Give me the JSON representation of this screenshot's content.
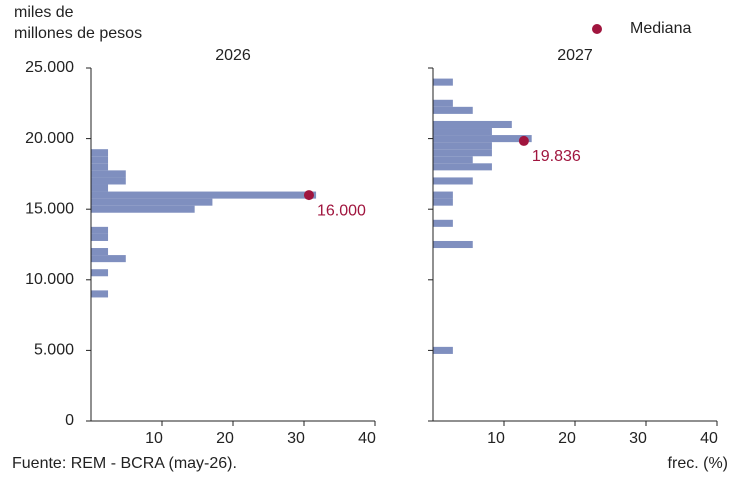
{
  "chart_data": [
    {
      "type": "barh",
      "title": "2026",
      "color": "#7f8fbf",
      "bin_edges": [
        [
          8750,
          9250
        ],
        [
          10250,
          10750
        ],
        [
          11250,
          11750
        ],
        [
          11750,
          12250
        ],
        [
          12750,
          13250
        ],
        [
          13250,
          13750
        ],
        [
          14750,
          15250
        ],
        [
          15250,
          15750
        ],
        [
          15750,
          16250
        ],
        [
          16250,
          16750
        ],
        [
          16750,
          17250
        ],
        [
          17250,
          17750
        ],
        [
          17750,
          18250
        ],
        [
          18250,
          18750
        ],
        [
          18750,
          19250
        ]
      ],
      "values": [
        2.4,
        2.4,
        4.9,
        2.4,
        2.4,
        2.4,
        14.6,
        17.1,
        31.7,
        2.4,
        4.9,
        4.9,
        2.4,
        2.4,
        2.4
      ],
      "median": {
        "y": 16000,
        "label": "16.000",
        "x": 30.7,
        "color": "#a0153e"
      },
      "xlim": [
        0,
        40
      ],
      "xticks": [
        10,
        20,
        30,
        40
      ],
      "ylim": [
        0,
        25000
      ],
      "yticks": [
        {
          "value": 0,
          "label": "0"
        },
        {
          "value": 5000,
          "label": "5.000"
        },
        {
          "value": 10000,
          "label": "10.000"
        },
        {
          "value": 15000,
          "label": "15.000"
        },
        {
          "value": 20000,
          "label": "20.000"
        },
        {
          "value": 25000,
          "label": "25.000"
        }
      ]
    },
    {
      "type": "barh",
      "title": "2027",
      "color": "#7f8fbf",
      "bin_edges": [
        [
          4750,
          5250
        ],
        [
          12250,
          12750
        ],
        [
          13750,
          14250
        ],
        [
          15250,
          15750
        ],
        [
          15750,
          16250
        ],
        [
          16750,
          17250
        ],
        [
          17750,
          18250
        ],
        [
          18250,
          18750
        ],
        [
          18750,
          19250
        ],
        [
          19250,
          19750
        ],
        [
          19750,
          20250
        ],
        [
          20250,
          20750
        ],
        [
          20750,
          21250
        ],
        [
          21750,
          22250
        ],
        [
          22250,
          22750
        ],
        [
          23750,
          24250
        ]
      ],
      "values": [
        2.8,
        5.6,
        2.8,
        2.8,
        2.8,
        5.6,
        8.3,
        5.6,
        8.3,
        8.3,
        13.9,
        8.3,
        11.1,
        5.6,
        2.8,
        2.8
      ],
      "median": {
        "y": 19836,
        "label": "19.836",
        "x": 12.8,
        "color": "#a0153e"
      },
      "xlim": [
        0,
        40
      ],
      "xticks": [
        10,
        20,
        30,
        40
      ],
      "ylim": [
        0,
        25000
      ],
      "yticks": [
        0,
        5000,
        10000,
        15000,
        20000,
        25000
      ]
    }
  ],
  "y_label": [
    "miles de",
    "millones de pesos"
  ],
  "legend": "Mediana",
  "x_label": "frec. (%)",
  "source": "Fuente: REM - BCRA (may-26)."
}
